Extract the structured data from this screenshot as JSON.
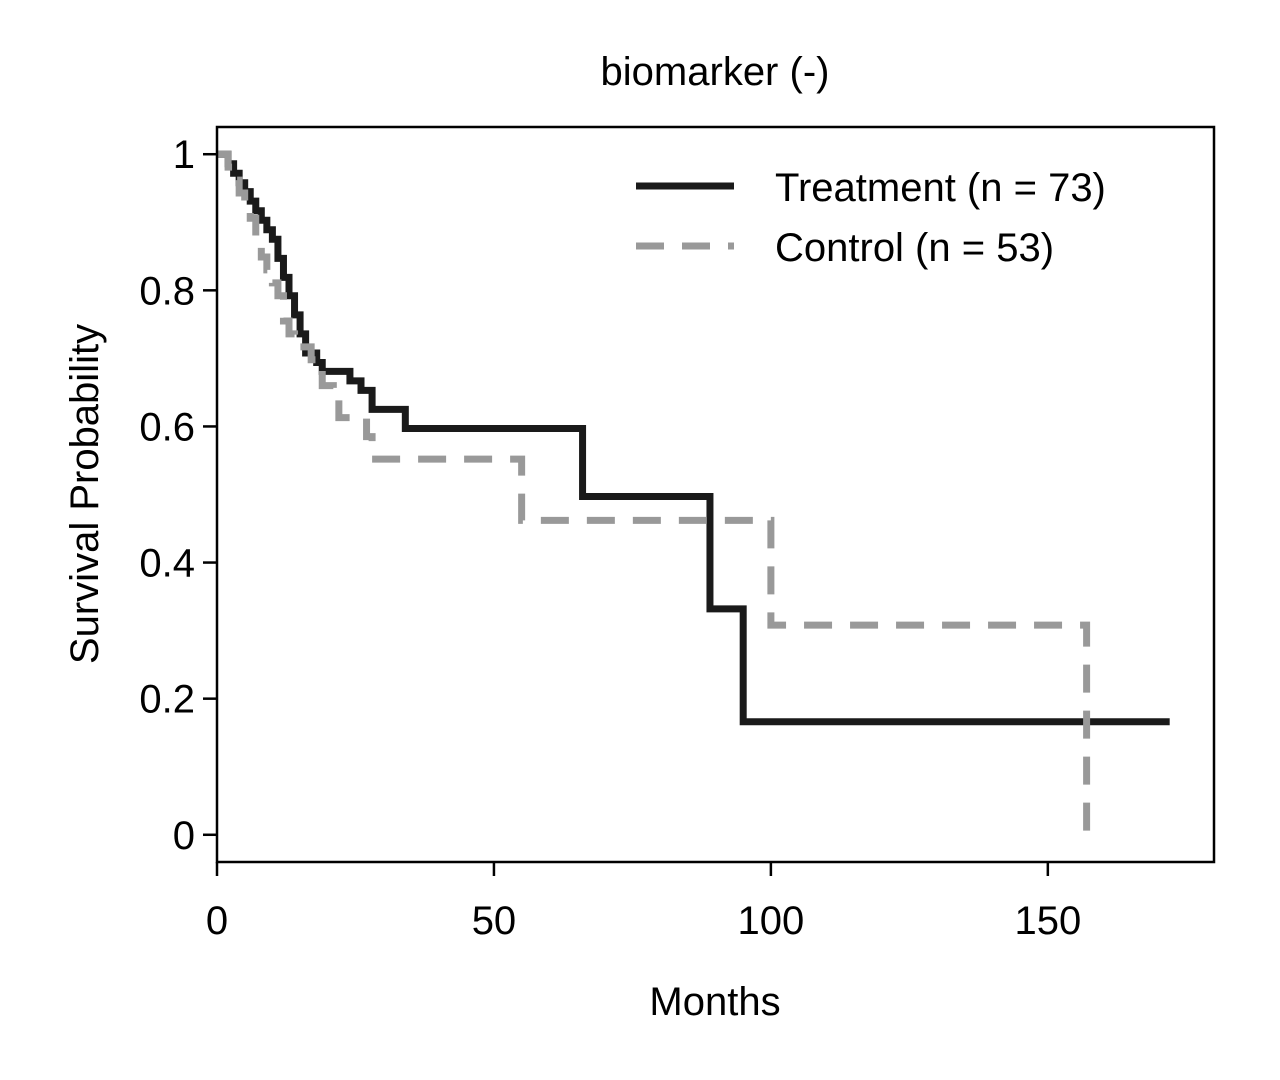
{
  "chart_data": {
    "type": "line",
    "subtype": "kaplan-meier step curve",
    "title": "biomarker (-)",
    "xlabel": "Months",
    "ylabel": "Survival Probability",
    "xlim": [
      0,
      180
    ],
    "ylim": [
      -0.04,
      1.04
    ],
    "xticks": [
      0,
      50,
      100,
      150
    ],
    "xtick_labels": [
      "0",
      "50",
      "100",
      "150"
    ],
    "yticks": [
      0,
      0.2,
      0.4,
      0.6,
      0.8,
      1
    ],
    "ytick_labels": [
      "0",
      "0.2",
      "0.4",
      "0.6",
      "0.8",
      "1"
    ],
    "grid": false,
    "legend_position": "top-right",
    "series": [
      {
        "name": "Treatment (n = 73)",
        "color": "#1a1a1a",
        "dash": "solid",
        "x": [
          0,
          2,
          3,
          4,
          5,
          6,
          7,
          8,
          9,
          10,
          11,
          12,
          13,
          14,
          15,
          16,
          18,
          19,
          22,
          24,
          26,
          28,
          34,
          66,
          89,
          95,
          172
        ],
        "y": [
          1,
          0.986,
          0.972,
          0.958,
          0.945,
          0.931,
          0.917,
          0.903,
          0.889,
          0.875,
          0.847,
          0.819,
          0.792,
          0.764,
          0.736,
          0.708,
          0.694,
          0.681,
          0.681,
          0.667,
          0.653,
          0.625,
          0.597,
          0.497,
          0.332,
          0.166,
          0.166
        ]
      },
      {
        "name": "Control (n = 53)",
        "color": "#999999",
        "dash": "dashed",
        "x": [
          0,
          2,
          3,
          4,
          5,
          6,
          7,
          8,
          9,
          10,
          11,
          12,
          13,
          14,
          15,
          16,
          17,
          19,
          21,
          22,
          25,
          27,
          28,
          55,
          100,
          157
        ],
        "y": [
          1,
          0.981,
          0.962,
          0.943,
          0.925,
          0.906,
          0.868,
          0.849,
          0.83,
          0.811,
          0.792,
          0.755,
          0.736,
          0.717,
          0.717,
          0.717,
          0.698,
          0.66,
          0.641,
          0.613,
          0.613,
          0.585,
          0.552,
          0.462,
          0.308,
          0.0
        ]
      }
    ]
  }
}
